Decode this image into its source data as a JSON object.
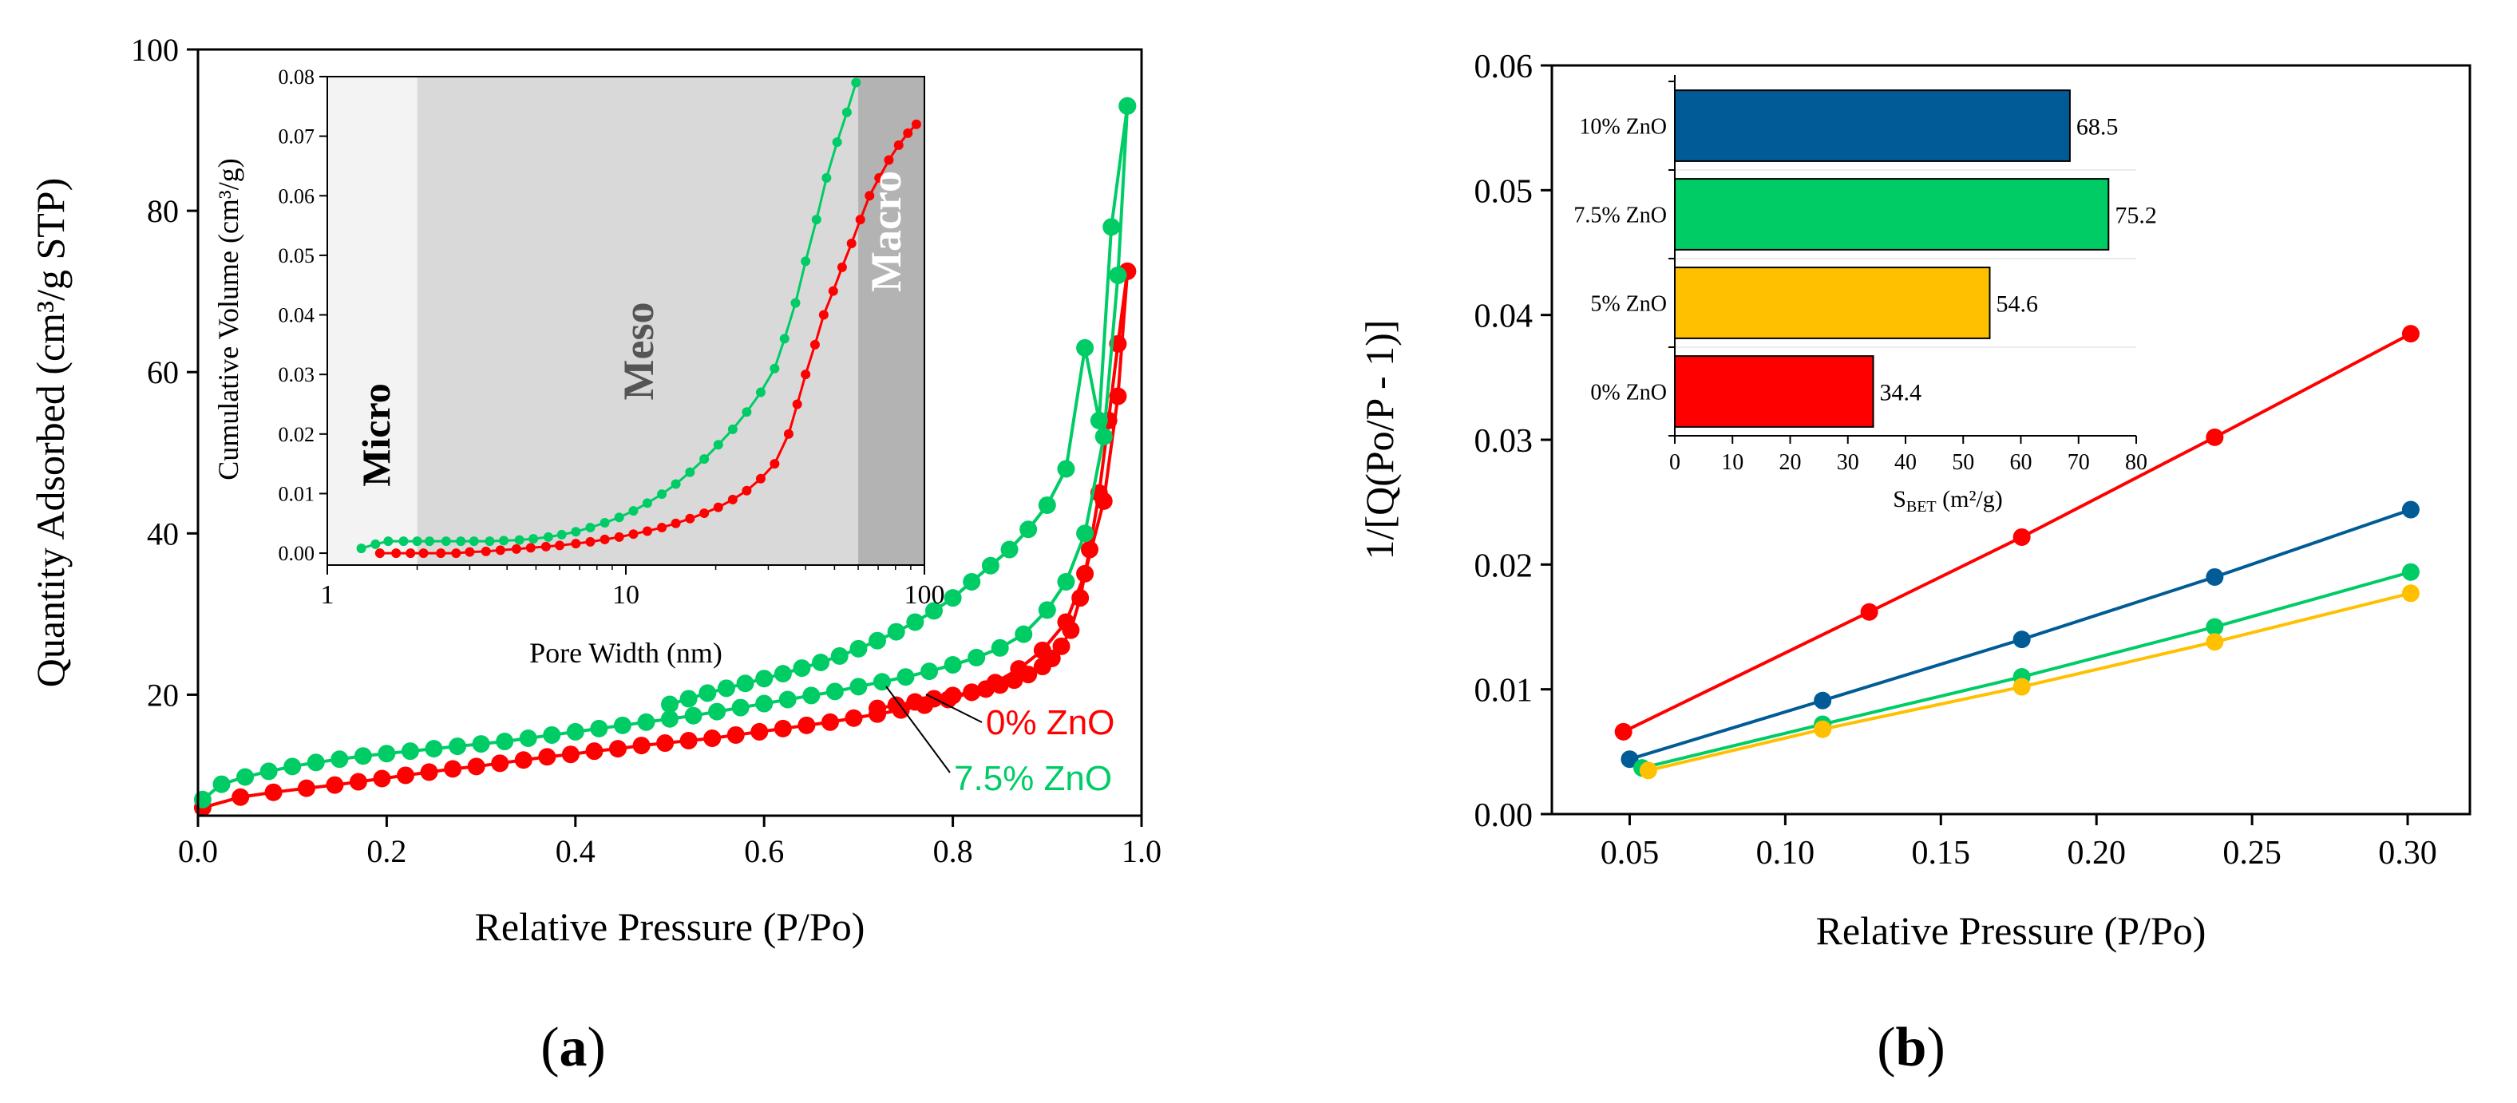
{
  "figure": {
    "label_a": "(a)",
    "label_b": "(b)",
    "label_a_letter": "a",
    "label_b_letter": "b"
  },
  "chart_data": [
    {
      "id": "panel-a-isotherm",
      "type": "scatter",
      "xlabel": "Relative Pressure (P/Po)",
      "ylabel": "Quantity Adsorbed (cm³/g STP)",
      "xlim": [
        0.0,
        1.0
      ],
      "ylim": [
        5,
        100
      ],
      "xticks": [
        "0.0",
        "0.2",
        "0.4",
        "0.6",
        "0.8",
        "1.0"
      ],
      "xtick_values": [
        0,
        0.2,
        0.4,
        0.6,
        0.8,
        1.0
      ],
      "yticks": [
        "20",
        "40",
        "60",
        "80",
        "100"
      ],
      "ytick_values": [
        20,
        40,
        60,
        80,
        100
      ],
      "series": [
        {
          "name": "0% ZnO",
          "color": "#ff0000",
          "adsorption": {
            "x": [
              0.005,
              0.045,
              0.08,
              0.115,
              0.145,
              0.17,
              0.195,
              0.22,
              0.245,
              0.27,
              0.295,
              0.32,
              0.345,
              0.37,
              0.395,
              0.42,
              0.445,
              0.47,
              0.495,
              0.52,
              0.545,
              0.57,
              0.595,
              0.62,
              0.645,
              0.67,
              0.695,
              0.72,
              0.745,
              0.77,
              0.795,
              0.82,
              0.845,
              0.87,
              0.895,
              0.92,
              0.94,
              0.96,
              0.975,
              0.985
            ],
            "y": [
              6.0,
              7.3,
              7.9,
              8.4,
              8.8,
              9.2,
              9.6,
              10.0,
              10.4,
              10.8,
              11.1,
              11.5,
              11.9,
              12.3,
              12.6,
              13.0,
              13.3,
              13.7,
              14.0,
              14.3,
              14.6,
              15.0,
              15.4,
              15.8,
              16.2,
              16.6,
              17.1,
              17.6,
              18.1,
              18.7,
              19.4,
              20.3,
              21.5,
              23.2,
              25.5,
              29.0,
              35.0,
              44.0,
              57.0,
              72.5
            ]
          },
          "desorption": {
            "x": [
              0.985,
              0.975,
              0.965,
              0.955,
              0.945,
              0.935,
              0.925,
              0.915,
              0.905,
              0.895,
              0.88,
              0.865,
              0.85,
              0.835,
              0.82,
              0.8,
              0.78,
              0.76,
              0.74,
              0.72
            ],
            "y": [
              72.5,
              63.5,
              54.0,
              45.0,
              38.0,
              32.0,
              28.0,
              26.0,
              24.5,
              23.5,
              22.5,
              21.8,
              21.2,
              20.7,
              20.3,
              19.9,
              19.5,
              19.1,
              18.7,
              18.3
            ]
          },
          "label_color": "#ff0000"
        },
        {
          "name": "7.5% ZnO",
          "color": "#00cc66",
          "adsorption": {
            "x": [
              0.005,
              0.025,
              0.05,
              0.075,
              0.1,
              0.125,
              0.15,
              0.175,
              0.2,
              0.225,
              0.25,
              0.275,
              0.3,
              0.325,
              0.35,
              0.375,
              0.4,
              0.425,
              0.45,
              0.475,
              0.5,
              0.525,
              0.55,
              0.575,
              0.6,
              0.625,
              0.65,
              0.675,
              0.7,
              0.725,
              0.75,
              0.775,
              0.8,
              0.825,
              0.85,
              0.875,
              0.9,
              0.92,
              0.94,
              0.96,
              0.975,
              0.985
            ],
            "y": [
              7.0,
              8.9,
              9.8,
              10.5,
              11.1,
              11.6,
              12.0,
              12.4,
              12.7,
              13.0,
              13.3,
              13.6,
              13.9,
              14.2,
              14.6,
              15.0,
              15.4,
              15.8,
              16.2,
              16.6,
              17.0,
              17.4,
              17.9,
              18.4,
              18.9,
              19.4,
              19.9,
              20.4,
              21.0,
              21.6,
              22.2,
              22.9,
              23.7,
              24.6,
              25.8,
              27.5,
              30.5,
              34.0,
              40.0,
              52.0,
              72.0,
              93.0
            ]
          },
          "desorption": {
            "x": [
              0.985,
              0.968,
              0.955,
              0.94,
              0.92,
              0.9,
              0.88,
              0.86,
              0.84,
              0.82,
              0.8,
              0.78,
              0.76,
              0.74,
              0.72,
              0.7,
              0.68,
              0.66,
              0.64,
              0.62,
              0.6,
              0.58,
              0.56,
              0.54,
              0.52,
              0.5
            ],
            "y": [
              93.0,
              78.0,
              54.0,
              63.0,
              48.0,
              43.5,
              40.5,
              38.0,
              36.0,
              34.0,
              32.0,
              30.4,
              29.0,
              27.8,
              26.7,
              25.7,
              24.8,
              24.0,
              23.3,
              22.6,
              22.0,
              21.4,
              20.8,
              20.2,
              19.5,
              18.8
            ]
          },
          "label_color": "#00cc66"
        }
      ],
      "annotations": [
        "0% ZnO",
        "7.5% ZnO"
      ]
    },
    {
      "id": "panel-a-inset-pore",
      "type": "line",
      "xlabel": "Pore Width (nm)",
      "ylabel": "Cumulative Volume (cm³/g)",
      "xscale": "log",
      "xlim": [
        1,
        100
      ],
      "ylim": [
        -0.002,
        0.08
      ],
      "xticks": [
        "1",
        "10",
        "100"
      ],
      "xtick_values": [
        1,
        10,
        100
      ],
      "yticks": [
        "0.00",
        "0.01",
        "0.02",
        "0.03",
        "0.04",
        "0.05",
        "0.06",
        "0.07",
        "0.08"
      ],
      "ytick_values": [
        0,
        0.01,
        0.02,
        0.03,
        0.04,
        0.05,
        0.06,
        0.07,
        0.08
      ],
      "regions": [
        {
          "label": "Micro",
          "from": 1,
          "to": 2,
          "color": "#f3f3f3"
        },
        {
          "label": "Meso",
          "from": 2,
          "to": 60,
          "color": "#d9d9d9"
        },
        {
          "label": "Macro",
          "from": 60,
          "to": 100,
          "color": "#b3b3b3"
        }
      ],
      "series": [
        {
          "name": "0% ZnO",
          "color": "#ff0000",
          "x": [
            1.5,
            1.7,
            1.9,
            2.1,
            2.4,
            2.7,
            3.0,
            3.4,
            3.8,
            4.3,
            4.8,
            5.4,
            6.0,
            6.8,
            7.6,
            8.5,
            9.5,
            10.6,
            11.8,
            13.2,
            14.7,
            16.4,
            18.3,
            20.4,
            22.8,
            25.4,
            28.3,
            31.5,
            35.1,
            37.5,
            40.0,
            43.0,
            46.0,
            49.5,
            53.0,
            57.0,
            61.0,
            65.5,
            70.5,
            76.0,
            82.0,
            88.0,
            94.0
          ],
          "y": [
            0.0,
            0.0,
            0.0,
            0.0,
            0.0,
            0.0,
            0.0002,
            0.0003,
            0.0005,
            0.0007,
            0.0009,
            0.0011,
            0.0013,
            0.0016,
            0.0019,
            0.0023,
            0.0027,
            0.0032,
            0.0037,
            0.0043,
            0.005,
            0.0058,
            0.0067,
            0.0077,
            0.009,
            0.0105,
            0.0125,
            0.015,
            0.02,
            0.025,
            0.03,
            0.035,
            0.04,
            0.044,
            0.048,
            0.052,
            0.056,
            0.06,
            0.063,
            0.066,
            0.0685,
            0.0705,
            0.072
          ]
        },
        {
          "name": "7.5% ZnO",
          "color": "#00cc66",
          "x": [
            1.3,
            1.45,
            1.6,
            1.8,
            2.0,
            2.2,
            2.5,
            2.8,
            3.1,
            3.5,
            3.9,
            4.4,
            4.9,
            5.5,
            6.1,
            6.8,
            7.6,
            8.5,
            9.5,
            10.6,
            11.8,
            13.2,
            14.7,
            16.4,
            18.3,
            20.4,
            22.8,
            25.4,
            28.3,
            31.5,
            34.0,
            37.0,
            40.0,
            43.5,
            47.0,
            51.0,
            55.0,
            59.0
          ],
          "y": [
            0.0008,
            0.0015,
            0.002,
            0.002,
            0.002,
            0.002,
            0.002,
            0.002,
            0.002,
            0.002,
            0.0021,
            0.0022,
            0.0024,
            0.0027,
            0.0031,
            0.0036,
            0.0043,
            0.0051,
            0.006,
            0.0071,
            0.0084,
            0.0099,
            0.0116,
            0.0136,
            0.0158,
            0.0182,
            0.0208,
            0.0237,
            0.027,
            0.031,
            0.036,
            0.042,
            0.049,
            0.056,
            0.063,
            0.069,
            0.074,
            0.079
          ]
        }
      ]
    },
    {
      "id": "panel-b-bet",
      "type": "line",
      "xlabel": "Relative Pressure (P/Po)",
      "ylabel": "1/[Q(Po/P - 1)]",
      "xlim": [
        0.025,
        0.32
      ],
      "ylim": [
        0.0,
        0.06
      ],
      "xticks": [
        "0.05",
        "0.10",
        "0.15",
        "0.20",
        "0.25",
        "0.30"
      ],
      "xtick_values": [
        0.05,
        0.1,
        0.15,
        0.2,
        0.25,
        0.3
      ],
      "yticks": [
        "0.00",
        "0.01",
        "0.02",
        "0.03",
        "0.04",
        "0.05",
        "0.06"
      ],
      "ytick_values": [
        0,
        0.01,
        0.02,
        0.03,
        0.04,
        0.05,
        0.06
      ],
      "series": [
        {
          "name": "0% ZnO",
          "color": "#ff0000",
          "x": [
            0.048,
            0.127,
            0.176,
            0.238,
            0.301
          ],
          "y": [
            0.0066,
            0.0162,
            0.0222,
            0.0302,
            0.0385
          ]
        },
        {
          "name": "10% ZnO",
          "color": "#005b96",
          "x": [
            0.05,
            0.112,
            0.176,
            0.238,
            0.301
          ],
          "y": [
            0.0044,
            0.0091,
            0.014,
            0.019,
            0.0244
          ]
        },
        {
          "name": "7.5% ZnO",
          "color": "#00cc66",
          "x": [
            0.054,
            0.112,
            0.176,
            0.238,
            0.301
          ],
          "y": [
            0.0037,
            0.0072,
            0.011,
            0.015,
            0.0194
          ]
        },
        {
          "name": "5% ZnO",
          "color": "#ffc000",
          "x": [
            0.056,
            0.112,
            0.176,
            0.238,
            0.301
          ],
          "y": [
            0.0035,
            0.0068,
            0.0102,
            0.0138,
            0.0177
          ]
        }
      ]
    },
    {
      "id": "panel-b-inset-sbet",
      "type": "bar",
      "orientation": "horizontal",
      "xlabel": "S",
      "xlabel_sub": "BET",
      "xlabel_unit": " (m²/g)",
      "xlim": [
        0,
        80
      ],
      "xticks": [
        "0",
        "10",
        "20",
        "30",
        "40",
        "50",
        "60",
        "70",
        "80"
      ],
      "xtick_values": [
        0,
        10,
        20,
        30,
        40,
        50,
        60,
        70,
        80
      ],
      "categories": [
        "10% ZnO",
        "7.5% ZnO",
        "5% ZnO",
        "0% ZnO"
      ],
      "values": [
        68.5,
        75.2,
        54.6,
        34.4
      ],
      "value_labels": [
        "68.5",
        "75.2",
        "54.6",
        "34.4"
      ],
      "colors": [
        "#005b96",
        "#00cc66",
        "#ffc000",
        "#ff0000"
      ]
    }
  ]
}
